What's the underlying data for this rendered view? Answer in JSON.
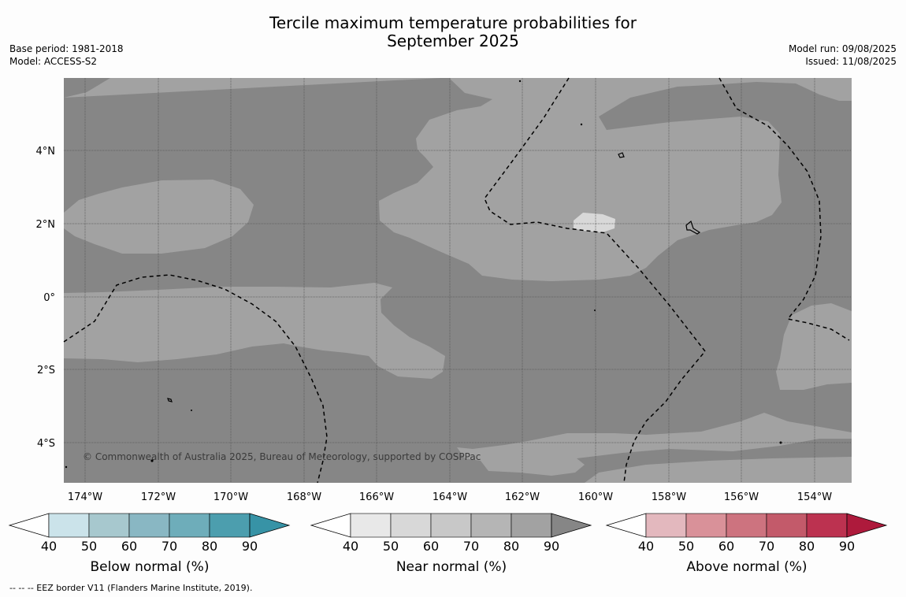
{
  "title": {
    "line1": "Tercile maximum temperature probabilities for",
    "line2": "September 2025"
  },
  "meta_left": {
    "base_period": "Base period: 1981-2018",
    "model": "Model: ACCESS-S2"
  },
  "meta_right": {
    "model_run": "Model run: 09/08/2025",
    "issued": "Issued: 11/08/2025"
  },
  "map": {
    "lat_ticks": [
      "4°N",
      "2°N",
      "0°",
      "2°S",
      "4°S"
    ],
    "lon_ticks": [
      "174°W",
      "172°W",
      "170°W",
      "168°W",
      "166°W",
      "164°W",
      "162°W",
      "160°W",
      "158°W",
      "156°W",
      "154°W"
    ],
    "copyright": "© Commonwealth of Australia 2025, Bureau of Meteorology, supported by COSPPac",
    "colors": {
      "near_normal_90": "#868686",
      "near_normal_80": "#a2a2a2",
      "near_normal_60": "#d8d8d8",
      "grid": "#555555",
      "eez_border": "#000000"
    }
  },
  "colorbars": [
    {
      "name": "below",
      "label": "Below normal (%)",
      "ticks": [
        "40",
        "50",
        "60",
        "70",
        "80",
        "90"
      ],
      "colors": [
        "#ffffff",
        "#cbe3ea",
        "#a7c8ce",
        "#89b7c3",
        "#6eadba",
        "#4c9eae",
        "#3793a6"
      ]
    },
    {
      "name": "near",
      "label": "Near normal (%)",
      "ticks": [
        "40",
        "50",
        "60",
        "70",
        "80",
        "90"
      ],
      "colors": [
        "#ffffff",
        "#e8e8e8",
        "#d8d8d8",
        "#c8c8c8",
        "#b5b5b5",
        "#a2a2a2",
        "#868686"
      ]
    },
    {
      "name": "above",
      "label": "Above normal (%)",
      "ticks": [
        "40",
        "50",
        "60",
        "70",
        "80",
        "90"
      ],
      "colors": [
        "#ffffff",
        "#e3b8be",
        "#d99199",
        "#cd737f",
        "#c35a6a",
        "#bc3250",
        "#ae1a3c"
      ]
    }
  ],
  "footnote": "--  --  -- EEZ border V11 (Flanders Marine Institute, 2019)."
}
